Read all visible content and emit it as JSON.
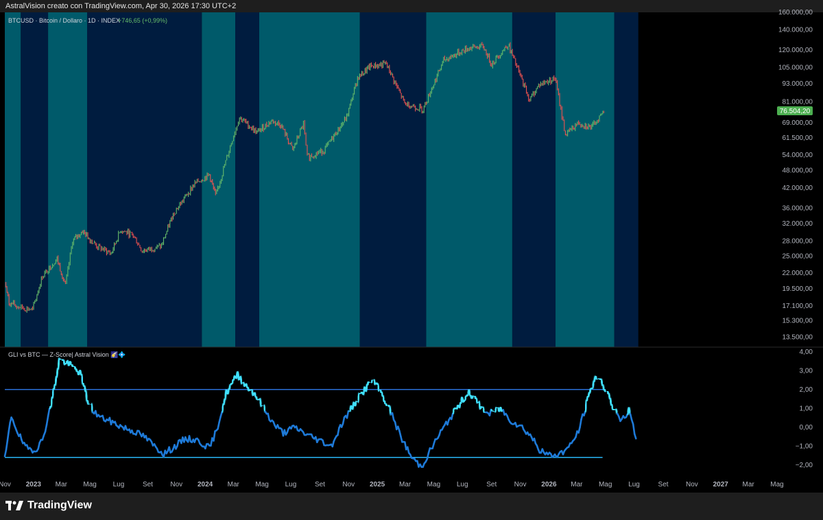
{
  "header": {
    "title": "AstralVision creato con TradingView.com, Apr 30, 2026 17:30 UTC+2"
  },
  "footer": {
    "brand": "TradingView"
  },
  "colors": {
    "band_light": "#005a6a",
    "band_dark": "#001c3f",
    "price_up": "#66bb6a",
    "price_down": "#ef5350",
    "zline": "#1e7ad8",
    "zglow": "#40e0ff",
    "threshold_upper": "#2a6fd6",
    "threshold_lower": "#29b6f6",
    "last_price_badge": "#4caf50"
  },
  "chart_data": [
    {
      "type": "line",
      "symbol_label": "BTCUSD · Bitcoin / Dollaro · 1D · INDEX",
      "change_label": "+746,65 (+0,99%)",
      "last_price_label": "76.504,20",
      "y_scale": "log",
      "ylim": [
        12500,
        160000
      ],
      "y_tick_labels": [
        "160.000,00",
        "140.000,00",
        "120.000,00",
        "105.000,00",
        "93.000,00",
        "81.000,00",
        "69.000,00",
        "61.500,00",
        "54.000,00",
        "48.000,00",
        "42.000,00",
        "36.000,00",
        "32.000,00",
        "28.000,00",
        "25.000,00",
        "22.000,00",
        "19.500,00",
        "17.100,00",
        "15.300,00",
        "13.500,00"
      ],
      "y_ticks": [
        160000,
        140000,
        120000,
        105000,
        93000,
        81000,
        69000,
        61500,
        54000,
        48000,
        42000,
        36000,
        32000,
        28000,
        25000,
        22000,
        19500,
        17100,
        15300,
        13500
      ],
      "x_range": [
        "2022-11-01",
        "2026-12-31"
      ],
      "series": [
        {
          "points": [
            [
              "2022-11-01",
              20500
            ],
            [
              "2022-11-10",
              17500
            ],
            [
              "2022-12-01",
              17000
            ],
            [
              "2022-12-30",
              16600
            ],
            [
              "2023-01-20",
              21500
            ],
            [
              "2023-02-20",
              24500
            ],
            [
              "2023-03-10",
              20000
            ],
            [
              "2023-03-25",
              28000
            ],
            [
              "2023-04-15",
              30300
            ],
            [
              "2023-05-15",
              27000
            ],
            [
              "2023-06-15",
              25500
            ],
            [
              "2023-07-05",
              30500
            ],
            [
              "2023-08-01",
              29300
            ],
            [
              "2023-08-20",
              26000
            ],
            [
              "2023-09-30",
              27000
            ],
            [
              "2023-10-25",
              34500
            ],
            [
              "2023-12-10",
              43500
            ],
            [
              "2024-01-10",
              46500
            ],
            [
              "2024-01-23",
              39500
            ],
            [
              "2024-02-28",
              61000
            ],
            [
              "2024-03-14",
              72000
            ],
            [
              "2024-04-20",
              64000
            ],
            [
              "2024-05-20",
              70000
            ],
            [
              "2024-06-10",
              68000
            ],
            [
              "2024-07-05",
              56000
            ],
            [
              "2024-07-28",
              68500
            ],
            [
              "2024-08-05",
              53000
            ],
            [
              "2024-09-10",
              56000
            ],
            [
              "2024-10-28",
              72000
            ],
            [
              "2024-11-20",
              97000
            ],
            [
              "2024-12-17",
              106000
            ],
            [
              "2025-01-20",
              108000
            ],
            [
              "2025-02-28",
              80000
            ],
            [
              "2025-04-08",
              76500
            ],
            [
              "2025-05-22",
              111000
            ],
            [
              "2025-07-14",
              122000
            ],
            [
              "2025-08-14",
              123500
            ],
            [
              "2025-09-01",
              108000
            ],
            [
              "2025-10-06",
              125500
            ],
            [
              "2025-11-21",
              82000
            ],
            [
              "2025-12-10",
              92000
            ],
            [
              "2026-01-14",
              97000
            ],
            [
              "2026-02-05",
              63000
            ],
            [
              "2026-03-05",
              69000
            ],
            [
              "2026-04-02",
              66500
            ],
            [
              "2026-04-30",
              76504
            ]
          ]
        }
      ],
      "regime_bands": [
        {
          "start": "2022-11-01",
          "end": "2022-12-05",
          "regime": "light"
        },
        {
          "start": "2022-12-05",
          "end": "2023-02-01",
          "regime": "dark"
        },
        {
          "start": "2023-02-01",
          "end": "2023-04-25",
          "regime": "light"
        },
        {
          "start": "2023-04-25",
          "end": "2023-12-25",
          "regime": "dark"
        },
        {
          "start": "2023-12-25",
          "end": "2024-03-05",
          "regime": "light"
        },
        {
          "start": "2024-03-05",
          "end": "2024-04-25",
          "regime": "dark"
        },
        {
          "start": "2024-04-25",
          "end": "2024-11-25",
          "regime": "light"
        },
        {
          "start": "2024-11-25",
          "end": "2025-04-15",
          "regime": "dark"
        },
        {
          "start": "2025-04-15",
          "end": "2025-10-15",
          "regime": "light"
        },
        {
          "start": "2025-10-15",
          "end": "2026-01-15",
          "regime": "dark"
        },
        {
          "start": "2026-01-15",
          "end": "2026-05-20",
          "regime": "light"
        },
        {
          "start": "2026-05-20",
          "end": "2026-07-10",
          "regime": "dark"
        }
      ]
    },
    {
      "type": "line",
      "title": "GLI vs BTC — Z-Score| Astral Vision 🌠💠",
      "ylim": [
        -2.3,
        4.1
      ],
      "y_ticks": [
        4,
        3,
        2,
        1,
        0,
        -1,
        -2
      ],
      "y_tick_labels": [
        "4,00",
        "3,00",
        "2,00",
        "1,00",
        "0,00",
        "−1,00",
        "−2,00"
      ],
      "thresholds": [
        2,
        -1.6
      ],
      "x_tick_labels": [
        "Nov",
        "2023",
        "Mar",
        "Mag",
        "Lug",
        "Set",
        "Nov",
        "2024",
        "Mar",
        "Mag",
        "Lug",
        "Set",
        "Nov",
        "2025",
        "Mar",
        "Mag",
        "Lug",
        "Set",
        "Nov",
        "2026",
        "Mar",
        "Mag",
        "Lug",
        "Set",
        "Nov",
        "2027",
        "Mar",
        "Mag"
      ],
      "x_ticks": [
        "2022-11-01",
        "2023-01-01",
        "2023-03-01",
        "2023-05-01",
        "2023-07-01",
        "2023-09-01",
        "2023-11-01",
        "2024-01-01",
        "2024-03-01",
        "2024-05-01",
        "2024-07-01",
        "2024-09-01",
        "2024-11-01",
        "2025-01-01",
        "2025-03-01",
        "2025-05-01",
        "2025-07-01",
        "2025-09-01",
        "2025-11-01",
        "2026-01-01",
        "2026-03-01",
        "2026-05-01",
        "2026-07-01",
        "2026-09-01",
        "2026-11-01",
        "2027-01-01",
        "2027-03-01",
        "2027-05-01"
      ],
      "series": [
        {
          "points": [
            [
              "2022-11-01",
              -1.7
            ],
            [
              "2022-11-15",
              0.6
            ],
            [
              "2022-12-01",
              -0.4
            ],
            [
              "2022-12-15",
              -1.1
            ],
            [
              "2023-01-05",
              -1.2
            ],
            [
              "2023-01-20",
              -0.7
            ],
            [
              "2023-02-10",
              1.5
            ],
            [
              "2023-02-25",
              3.6
            ],
            [
              "2023-03-20",
              3.3
            ],
            [
              "2023-04-10",
              2.9
            ],
            [
              "2023-04-25",
              1.5
            ],
            [
              "2023-05-10",
              0.8
            ],
            [
              "2023-05-25",
              0.5
            ],
            [
              "2023-06-15",
              0.3
            ],
            [
              "2023-07-10",
              0.0
            ],
            [
              "2023-08-01",
              -0.2
            ],
            [
              "2023-08-25",
              -0.5
            ],
            [
              "2023-09-15",
              -1.0
            ],
            [
              "2023-10-05",
              -1.4
            ],
            [
              "2023-10-25",
              -1.1
            ],
            [
              "2023-11-20",
              -0.6
            ],
            [
              "2023-12-15",
              -0.7
            ],
            [
              "2024-01-10",
              -1.1
            ],
            [
              "2024-01-25",
              -0.2
            ],
            [
              "2024-02-15",
              1.8
            ],
            [
              "2024-03-10",
              2.8
            ],
            [
              "2024-03-28",
              2.2
            ],
            [
              "2024-04-15",
              1.8
            ],
            [
              "2024-05-05",
              1.0
            ],
            [
              "2024-05-25",
              0.2
            ],
            [
              "2024-06-15",
              -0.3
            ],
            [
              "2024-07-10",
              0.0
            ],
            [
              "2024-08-05",
              -0.4
            ],
            [
              "2024-09-01",
              -0.7
            ],
            [
              "2024-09-25",
              -1.0
            ],
            [
              "2024-10-20",
              0.3
            ],
            [
              "2024-11-15",
              1.3
            ],
            [
              "2024-12-05",
              2.0
            ],
            [
              "2024-12-22",
              2.5
            ],
            [
              "2025-01-10",
              1.8
            ],
            [
              "2025-01-30",
              0.8
            ],
            [
              "2025-02-20",
              -0.5
            ],
            [
              "2025-03-15",
              -1.6
            ],
            [
              "2025-04-05",
              -2.1
            ],
            [
              "2025-04-20",
              -1.4
            ],
            [
              "2025-05-10",
              -0.5
            ],
            [
              "2025-06-05",
              0.5
            ],
            [
              "2025-06-30",
              1.4
            ],
            [
              "2025-07-15",
              1.9
            ],
            [
              "2025-08-05",
              1.2
            ],
            [
              "2025-08-25",
              0.7
            ],
            [
              "2025-09-20",
              1.0
            ],
            [
              "2025-10-10",
              0.4
            ],
            [
              "2025-11-05",
              0.0
            ],
            [
              "2025-11-25",
              -0.5
            ],
            [
              "2025-12-15",
              -1.3
            ],
            [
              "2026-01-05",
              -1.5
            ],
            [
              "2026-01-25",
              -1.4
            ],
            [
              "2026-02-15",
              -1.0
            ],
            [
              "2026-03-05",
              -0.2
            ],
            [
              "2026-03-25",
              1.5
            ],
            [
              "2026-04-10",
              2.7
            ],
            [
              "2026-04-22",
              2.4
            ],
            [
              "2026-05-05",
              1.9
            ],
            [
              "2026-05-20",
              0.9
            ],
            [
              "2026-06-05",
              0.3
            ],
            [
              "2026-06-20",
              0.9
            ],
            [
              "2026-07-05",
              -0.6
            ]
          ]
        }
      ]
    }
  ]
}
